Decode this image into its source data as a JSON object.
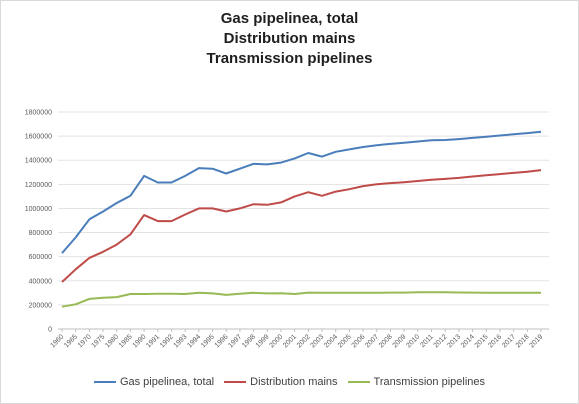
{
  "chart_data": {
    "type": "line",
    "title_lines": [
      "Gas pipelinea, total",
      "Distribution mains",
      "Transmission pipelines"
    ],
    "xlabel": "",
    "ylabel": "",
    "ylim": [
      0,
      1800000
    ],
    "yticks": [
      0,
      200000,
      400000,
      600000,
      800000,
      1000000,
      1200000,
      1400000,
      1600000,
      1800000
    ],
    "grid": true,
    "legend_position": "bottom",
    "x": [
      "1960",
      "1965",
      "1970",
      "1975",
      "1980",
      "1985",
      "1990",
      "1991",
      "1992",
      "1993",
      "1994",
      "1995",
      "1996",
      "1997",
      "1998",
      "1999",
      "2000",
      "2001",
      "2002",
      "2003",
      "2004",
      "2005",
      "2006",
      "2007",
      "2008",
      "2009",
      "2010",
      "2011",
      "2012",
      "2013",
      "2014",
      "2015",
      "2016",
      "2017",
      "2018",
      "2019"
    ],
    "series": [
      {
        "name": "Gas pipelinea, total",
        "color": "#4a7ebb",
        "values": [
          630000,
          760000,
          910000,
          975000,
          1045000,
          1105000,
          1270000,
          1215000,
          1215000,
          1270000,
          1335000,
          1330000,
          1290000,
          1330000,
          1370000,
          1365000,
          1380000,
          1415000,
          1460000,
          1430000,
          1470000,
          1490000,
          1510000,
          1525000,
          1535000,
          1545000,
          1555000,
          1565000,
          1568000,
          1575000,
          1585000,
          1595000,
          1605000,
          1615000,
          1625000,
          1637000
        ]
      },
      {
        "name": "Distribution mains",
        "color": "#be4b48",
        "values": [
          390000,
          495000,
          590000,
          640000,
          700000,
          785000,
          945000,
          895000,
          895000,
          950000,
          1000000,
          1000000,
          975000,
          1000000,
          1035000,
          1030000,
          1050000,
          1100000,
          1135000,
          1105000,
          1140000,
          1160000,
          1185000,
          1200000,
          1210000,
          1218000,
          1228000,
          1238000,
          1245000,
          1253000,
          1265000,
          1275000,
          1285000,
          1295000,
          1305000,
          1318000
        ]
      },
      {
        "name": "Transmission pipelines",
        "color": "#98b954",
        "values": [
          185000,
          205000,
          250000,
          260000,
          265000,
          290000,
          290000,
          292000,
          292000,
          290000,
          300000,
          295000,
          283000,
          292000,
          300000,
          295000,
          297000,
          290000,
          302000,
          300000,
          300000,
          300000,
          300000,
          300000,
          302000,
          302000,
          305000,
          305000,
          305000,
          303000,
          302000,
          300000,
          300000,
          300000,
          300000,
          300000
        ]
      }
    ]
  }
}
